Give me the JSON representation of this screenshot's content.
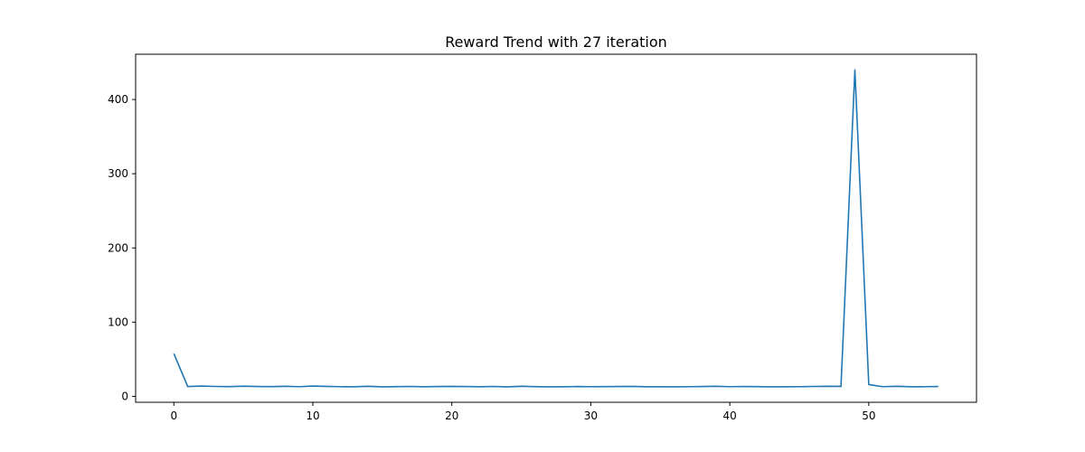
{
  "chart_data": {
    "type": "line",
    "title": "Reward Trend with 27 iteration",
    "xlabel": "",
    "ylabel": "",
    "xlim": [
      -2.75,
      57.75
    ],
    "ylim": [
      -8,
      461
    ],
    "xticks": [
      0,
      10,
      20,
      30,
      40,
      50
    ],
    "yticks": [
      0,
      100,
      200,
      300,
      400
    ],
    "grid": false,
    "line_color": "#1f77b4",
    "series": [
      {
        "x": [
          0,
          1,
          2,
          3,
          4,
          5,
          6,
          7,
          8,
          9,
          10,
          11,
          12,
          13,
          14,
          15,
          16,
          17,
          18,
          19,
          20,
          21,
          22,
          23,
          24,
          25,
          26,
          27,
          28,
          29,
          30,
          31,
          32,
          33,
          34,
          35,
          36,
          37,
          38,
          39,
          40,
          41,
          42,
          43,
          44,
          45,
          46,
          47,
          48,
          49,
          50,
          51,
          52,
          53,
          54,
          55
        ],
        "values": [
          57.5,
          13.2,
          13.8,
          13.3,
          13.1,
          13.7,
          13.2,
          13.1,
          13.5,
          13.0,
          13.9,
          13.4,
          13.0,
          12.9,
          13.6,
          12.8,
          13.1,
          13.3,
          12.9,
          13.2,
          13.4,
          13.2,
          12.9,
          13.3,
          12.8,
          13.6,
          13.1,
          12.8,
          12.9,
          13.2,
          13.0,
          13.1,
          13.2,
          13.4,
          12.9,
          12.9,
          12.8,
          13.0,
          13.2,
          13.5,
          13.0,
          13.2,
          13.1,
          12.8,
          12.9,
          13.0,
          13.3,
          13.6,
          13.4,
          440.0,
          15.8,
          13.0,
          13.6,
          12.9,
          13.0,
          13.2
        ]
      }
    ]
  }
}
